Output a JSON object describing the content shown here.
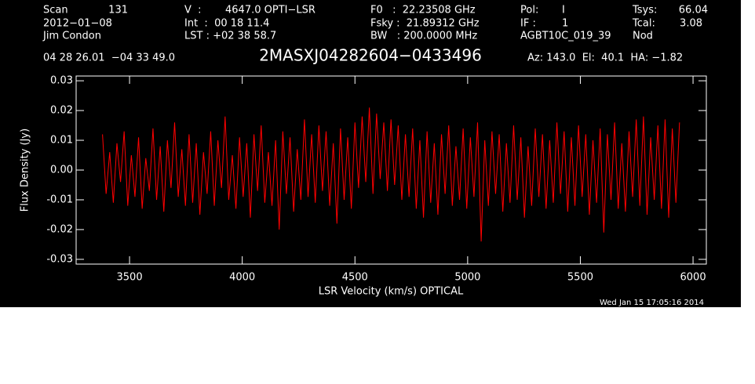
{
  "chart_data": {
    "type": "line",
    "title": "2MASXJ04282604−0433496",
    "header": [
      "Scan",
      "131",
      "2012−01−08",
      "Jim Condon",
      "V  :",
      "4647.0 OPTI−LSR",
      "Int  :  00 18 11.4",
      "LST : +02 38 58.7",
      "F0   :  22.23508 GHz",
      "Fsky :  21.89312 GHz",
      "BW   : 200.0000 MHz",
      "Pol:",
      "I",
      "IF :",
      "1",
      "AGBT10C_019_39",
      "Tsys:",
      "66.04",
      "Tcal:",
      "3.08",
      "Nod",
      "04 28 26.01  −04 33 49.0",
      "Az: 143.0  El:  40.1  HA: −1.82"
    ],
    "xlabel": "LSR Velocity (km/s) OPTICAL",
    "ylabel": "Flux Density (Jy)",
    "timestamp": "Wed Jan 15 17:05:16 2014",
    "color": "#ff0000",
    "xlim": [
      3263,
      6059
    ],
    "ylim": [
      -0.0316,
      0.0316
    ],
    "xticks": [
      3500,
      4000,
      4500,
      5000,
      5500,
      6000
    ],
    "yticks": [
      0.03,
      0.02,
      0.01,
      {
        "value": 0,
        "label": "0.00"
      },
      -0.01,
      -0.02,
      -0.03
    ],
    "x": [
      3380,
      3396,
      3412,
      3428,
      3444,
      3460,
      3476,
      3492,
      3508,
      3524,
      3540,
      3556,
      3572,
      3588,
      3604,
      3620,
      3636,
      3652,
      3668,
      3684,
      3700,
      3716,
      3732,
      3748,
      3764,
      3780,
      3796,
      3812,
      3828,
      3844,
      3860,
      3876,
      3892,
      3908,
      3924,
      3940,
      3956,
      3972,
      3988,
      4004,
      4020,
      4036,
      4052,
      4068,
      4084,
      4100,
      4116,
      4132,
      4148,
      4164,
      4180,
      4196,
      4212,
      4228,
      4244,
      4260,
      4276,
      4292,
      4308,
      4324,
      4340,
      4356,
      4372,
      4388,
      4404,
      4420,
      4436,
      4452,
      4468,
      4484,
      4500,
      4516,
      4532,
      4548,
      4564,
      4580,
      4596,
      4612,
      4628,
      4644,
      4660,
      4676,
      4692,
      4708,
      4724,
      4740,
      4756,
      4772,
      4788,
      4804,
      4820,
      4836,
      4852,
      4868,
      4884,
      4900,
      4916,
      4932,
      4948,
      4964,
      4980,
      4996,
      5012,
      5028,
      5044,
      5060,
      5076,
      5092,
      5108,
      5124,
      5140,
      5156,
      5172,
      5188,
      5204,
      5220,
      5236,
      5252,
      5268,
      5284,
      5300,
      5316,
      5332,
      5348,
      5364,
      5380,
      5396,
      5412,
      5428,
      5444,
      5460,
      5476,
      5492,
      5508,
      5524,
      5540,
      5556,
      5572,
      5588,
      5604,
      5620,
      5636,
      5652,
      5668,
      5684,
      5700,
      5716,
      5732,
      5748,
      5764,
      5780,
      5796,
      5812,
      5828,
      5844,
      5860,
      5876,
      5892,
      5908,
      5924,
      5940
    ],
    "values": [
      0.012,
      -0.008,
      0.006,
      -0.011,
      0.009,
      -0.004,
      0.013,
      -0.012,
      0.005,
      -0.009,
      0.011,
      -0.013,
      0.004,
      -0.007,
      0.014,
      -0.01,
      0.008,
      -0.014,
      0.01,
      -0.006,
      0.016,
      -0.009,
      0.007,
      -0.012,
      0.012,
      -0.011,
      0.009,
      -0.015,
      0.006,
      -0.008,
      0.013,
      -0.012,
      0.01,
      -0.006,
      0.018,
      -0.01,
      0.005,
      -0.013,
      0.011,
      -0.009,
      0.009,
      -0.016,
      0.012,
      -0.007,
      0.015,
      -0.011,
      0.006,
      -0.012,
      0.01,
      -0.02,
      0.013,
      -0.008,
      0.011,
      -0.014,
      0.007,
      -0.01,
      0.017,
      -0.009,
      0.012,
      -0.011,
      0.015,
      -0.007,
      0.013,
      -0.012,
      0.009,
      -0.018,
      0.014,
      -0.01,
      0.011,
      -0.013,
      0.016,
      -0.006,
      0.018,
      -0.004,
      0.021,
      -0.008,
      0.019,
      -0.003,
      0.016,
      -0.007,
      0.017,
      -0.005,
      0.015,
      -0.01,
      0.012,
      -0.009,
      0.014,
      -0.013,
      0.01,
      -0.016,
      0.013,
      -0.011,
      0.009,
      -0.015,
      0.012,
      -0.008,
      0.015,
      -0.012,
      0.008,
      -0.01,
      0.014,
      -0.013,
      0.011,
      -0.009,
      0.016,
      -0.024,
      0.01,
      -0.012,
      0.013,
      -0.008,
      0.012,
      -0.014,
      0.009,
      -0.011,
      0.015,
      -0.01,
      0.011,
      -0.016,
      0.008,
      -0.012,
      0.014,
      -0.009,
      0.012,
      -0.013,
      0.01,
      -0.011,
      0.016,
      -0.008,
      0.013,
      -0.014,
      0.011,
      -0.012,
      0.015,
      -0.009,
      0.012,
      -0.015,
      0.01,
      -0.011,
      0.014,
      -0.021,
      0.012,
      -0.01,
      0.016,
      -0.013,
      0.009,
      -0.014,
      0.013,
      -0.009,
      0.017,
      -0.012,
      0.018,
      -0.015,
      0.011,
      -0.01,
      0.015,
      -0.013,
      0.017,
      -0.016,
      0.014,
      -0.011,
      0.016
    ]
  }
}
